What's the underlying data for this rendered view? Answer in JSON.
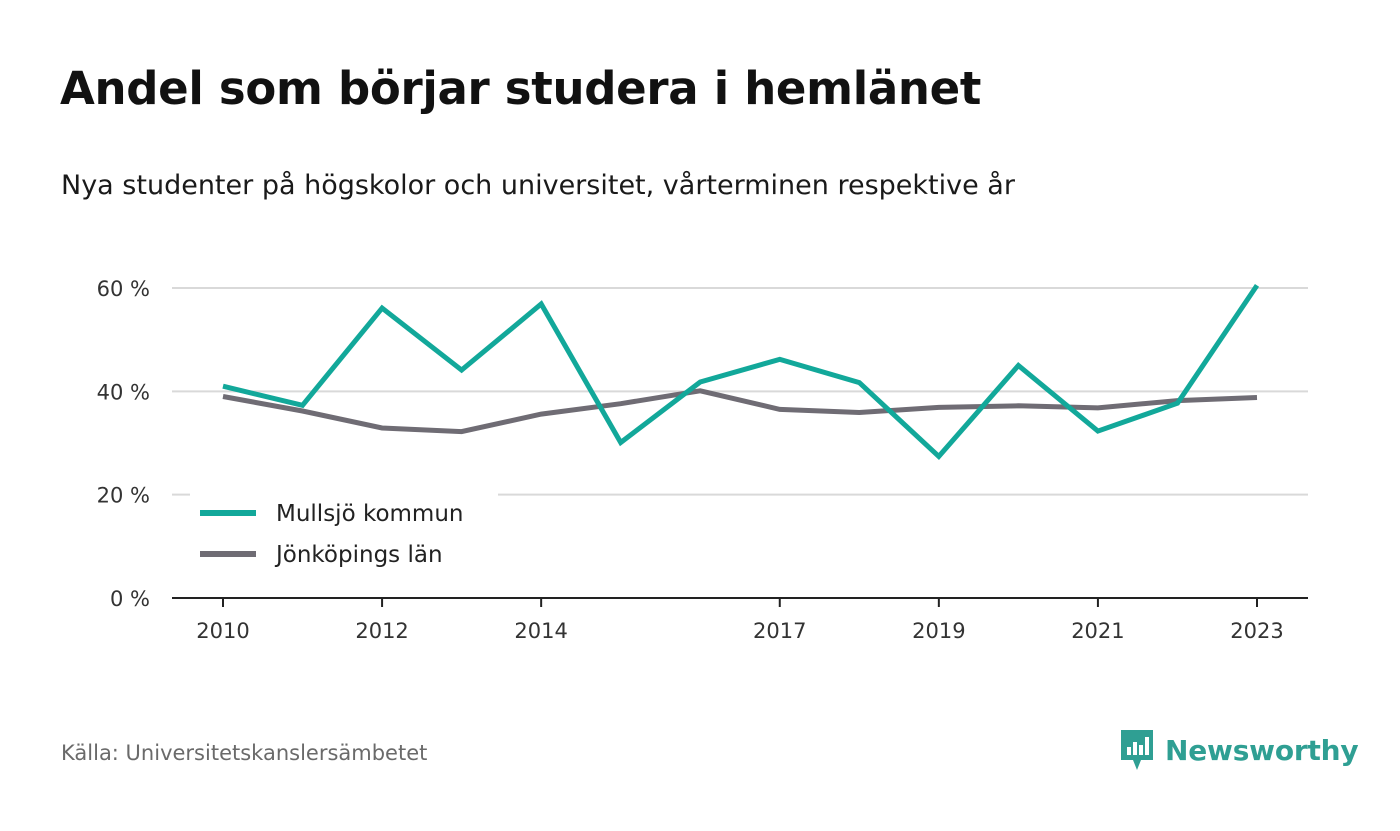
{
  "title": "Andel som börjar studera i hemlänet",
  "subtitle": "Nya studenter på högskolor och universitet, vårterminen respektive år",
  "source": "Källa: Universitetskanslersämbetet",
  "brand": {
    "name": "Newsworthy",
    "icon": "newsworthy-logo-icon",
    "color": "#2f9f93"
  },
  "chart_data": {
    "type": "line",
    "x": [
      2010,
      2011,
      2012,
      2013,
      2014,
      2015,
      2016,
      2017,
      2018,
      2019,
      2020,
      2021,
      2022,
      2023
    ],
    "x_tick_labels": [
      "2010",
      "2012",
      "2014",
      "2017",
      "2019",
      "2021",
      "2023"
    ],
    "x_tick_values": [
      2010,
      2012,
      2014,
      2017,
      2019,
      2021,
      2023
    ],
    "y_ticks": [
      0,
      20,
      40,
      60
    ],
    "y_tick_labels": [
      "0 %",
      "20 %",
      "40 %",
      "60 %"
    ],
    "ylim": [
      0,
      60
    ],
    "grid": true,
    "legend_position": "bottom-left",
    "series": [
      {
        "name": "Mullsjö kommun",
        "color": "#12a89a",
        "values": [
          41.0,
          37.3,
          56.1,
          44.1,
          56.9,
          30.1,
          41.8,
          46.2,
          41.7,
          27.4,
          45.0,
          32.3,
          37.7,
          60.5
        ]
      },
      {
        "name": "Jönköpings län",
        "color": "#6f6c74",
        "values": [
          39.0,
          36.2,
          32.9,
          32.2,
          35.6,
          37.6,
          40.1,
          36.5,
          35.9,
          36.9,
          37.2,
          36.8,
          38.2,
          38.8
        ]
      }
    ]
  }
}
